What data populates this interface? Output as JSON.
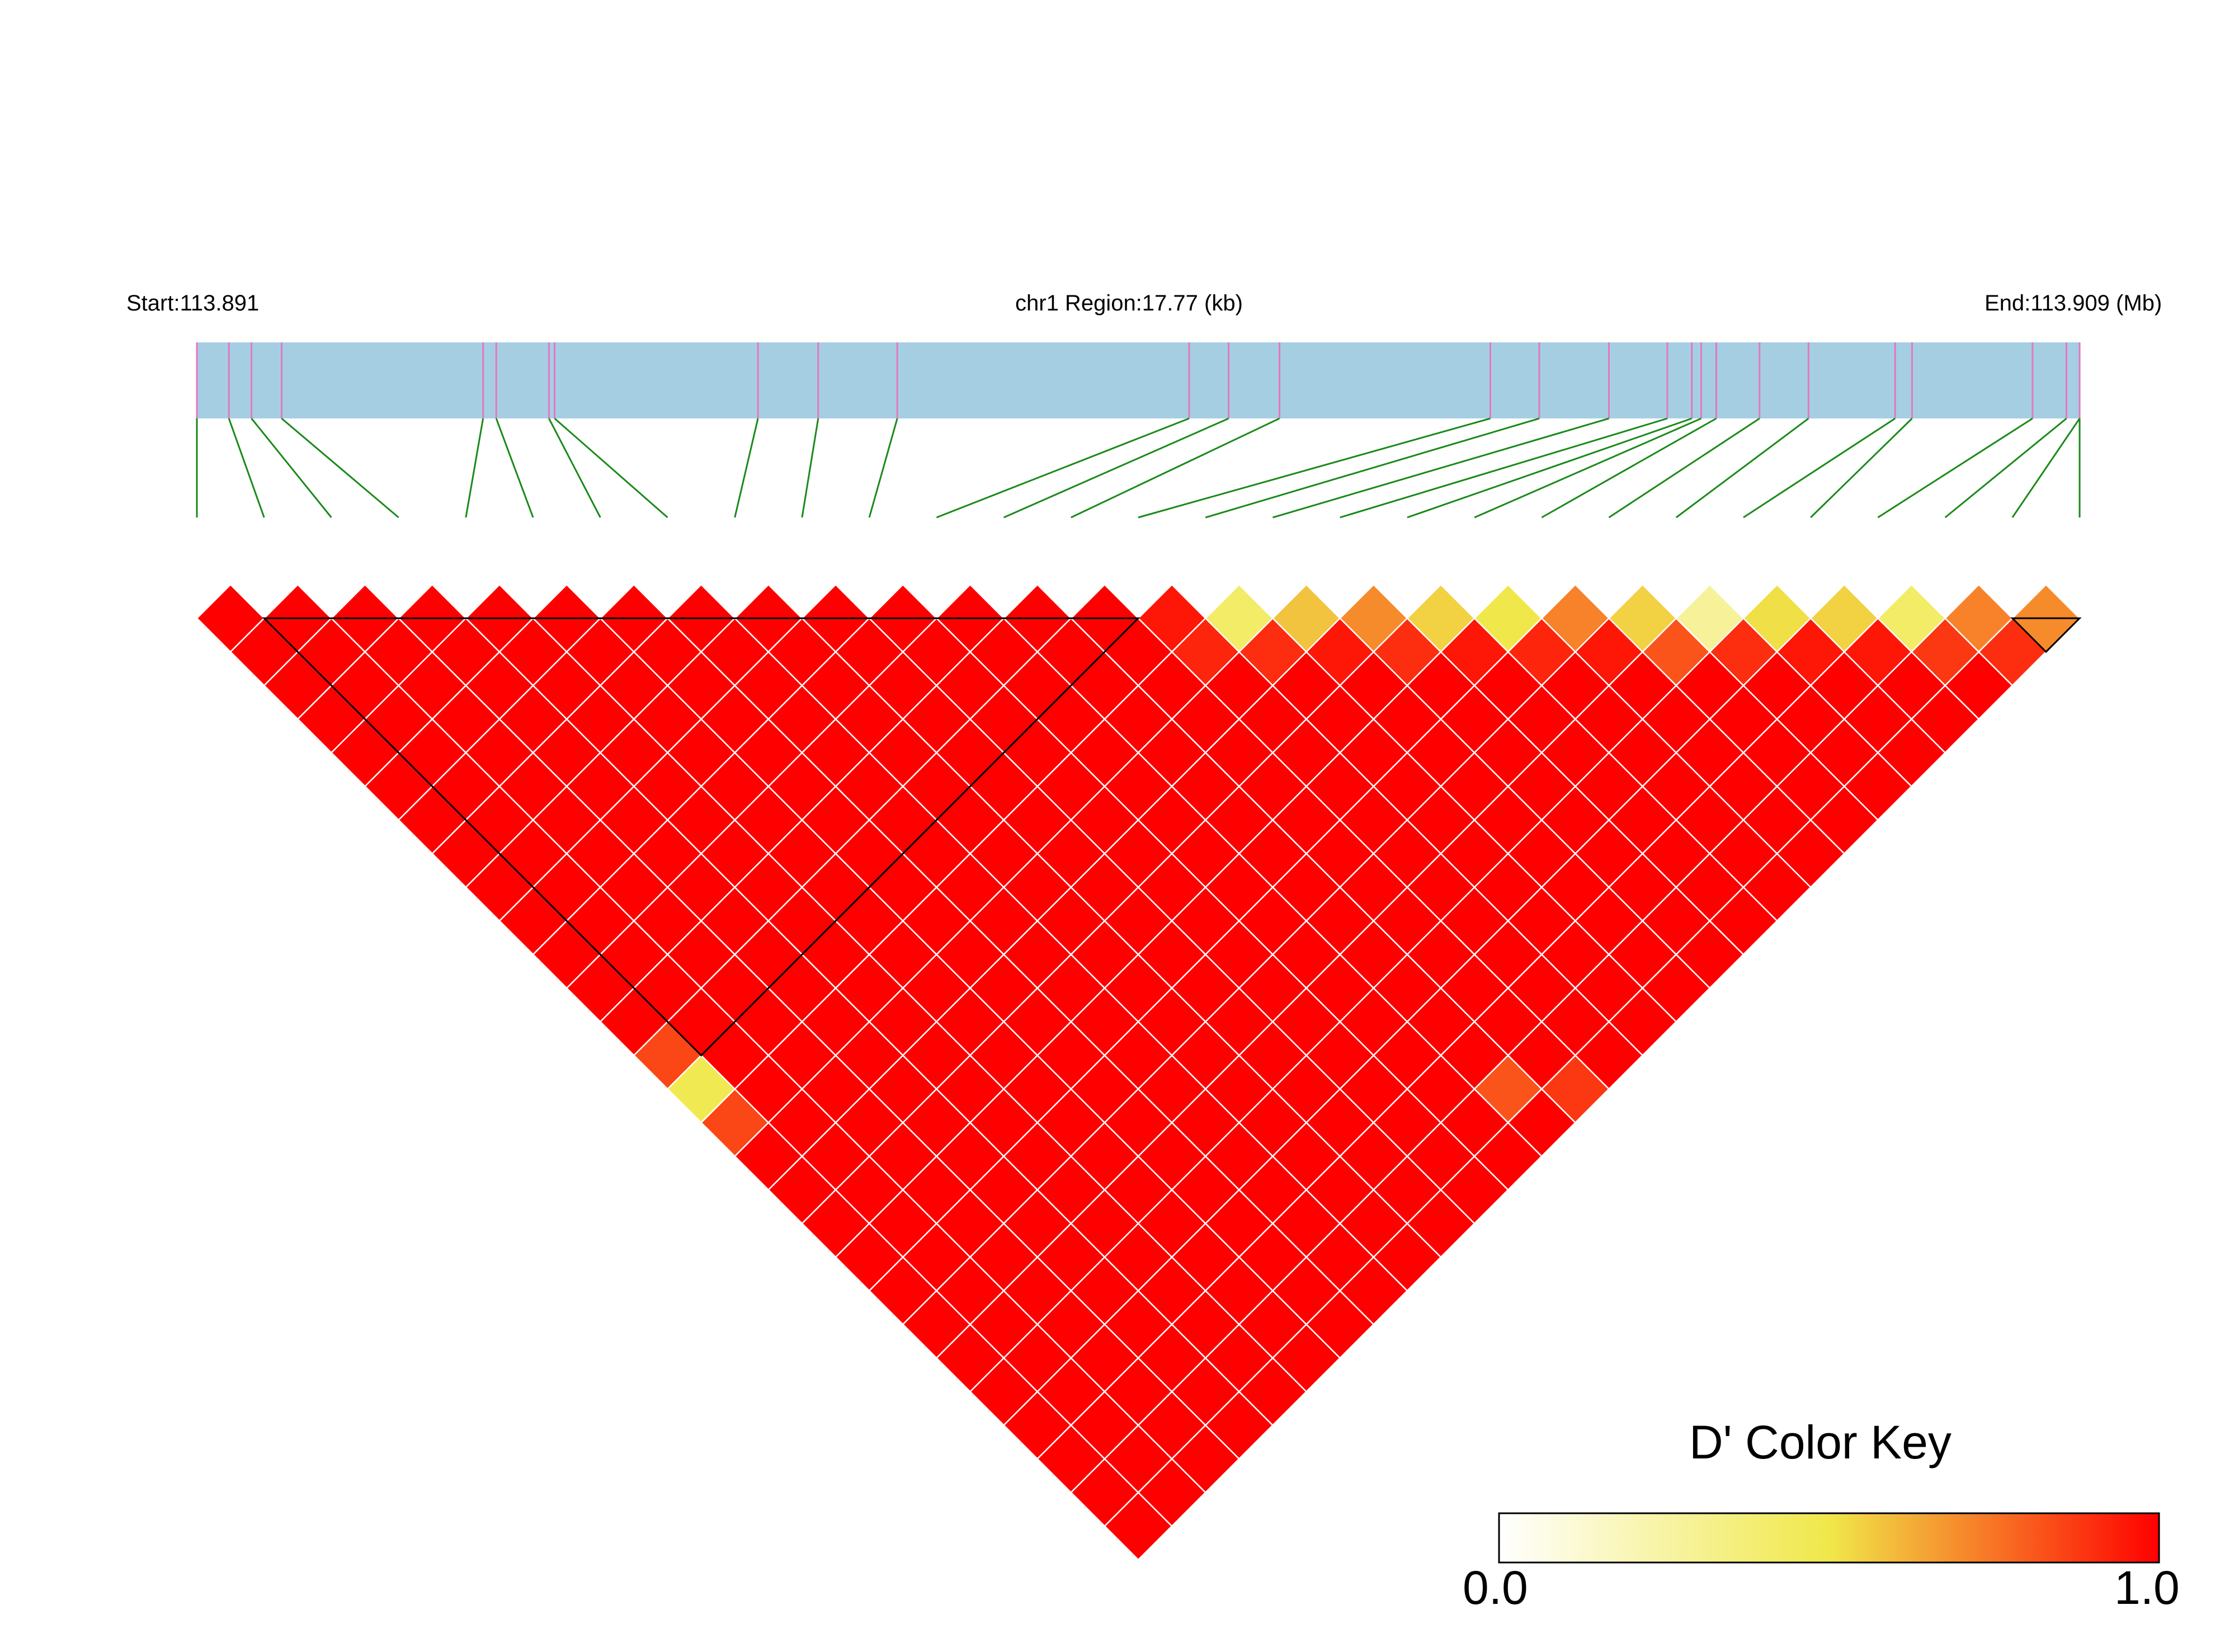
{
  "header": {
    "start_label": "Start:113.891",
    "region_label": "chr1 Region:17.77 (kb)",
    "end_label": "End:113.909 (Mb)"
  },
  "colorkey": {
    "title": "D' Color Key",
    "min_label": "0.0",
    "max_label": "1.0",
    "colors": {
      "low": "#ffffff",
      "mid": "#f0e84a",
      "high": "#ff0000"
    }
  },
  "colors": {
    "gene_bar": "#a6cee3",
    "snp_tick": "#e377c2",
    "connector": "#1a8a1a",
    "cell_border": "#ffffff",
    "block_border": "#000000"
  },
  "chart_data": {
    "type": "heatmap",
    "description_free": true,
    "region_start_mb": 113.891,
    "region_end_mb": 113.909,
    "n_snps": 29,
    "snp_positions_frac": [
      0.0,
      0.017,
      0.029,
      0.045,
      0.152,
      0.159,
      0.187,
      0.19,
      0.298,
      0.33,
      0.372,
      0.527,
      0.548,
      0.575,
      0.687,
      0.713,
      0.75,
      0.781,
      0.794,
      0.799,
      0.807,
      0.83,
      0.856,
      0.902,
      0.911,
      0.975,
      0.993,
      1.0,
      1.0
    ],
    "dprime_default": 1.0,
    "dprime_overrides": [
      {
        "i": 12,
        "j": 27,
        "value": 0.82
      },
      {
        "i": 13,
        "j": 28,
        "value": 0.88
      },
      {
        "i": 14,
        "j": 15,
        "value": 0.95
      },
      {
        "i": 14,
        "j": 16,
        "value": 0.92
      },
      {
        "i": 15,
        "j": 16,
        "value": 0.42
      },
      {
        "i": 15,
        "j": 17,
        "value": 0.9
      },
      {
        "i": 16,
        "j": 17,
        "value": 0.58
      },
      {
        "i": 16,
        "j": 18,
        "value": 0.95
      },
      {
        "i": 17,
        "j": 18,
        "value": 0.7
      },
      {
        "i": 17,
        "j": 19,
        "value": 0.9
      },
      {
        "i": 18,
        "j": 19,
        "value": 0.55
      },
      {
        "i": 18,
        "j": 20,
        "value": 0.95
      },
      {
        "i": 19,
        "j": 20,
        "value": 0.5
      },
      {
        "i": 19,
        "j": 21,
        "value": 0.92
      },
      {
        "i": 20,
        "j": 21,
        "value": 0.72
      },
      {
        "i": 20,
        "j": 22,
        "value": 0.95
      },
      {
        "i": 21,
        "j": 22,
        "value": 0.55
      },
      {
        "i": 21,
        "j": 23,
        "value": 0.82
      },
      {
        "i": 22,
        "j": 23,
        "value": 0.28
      },
      {
        "i": 22,
        "j": 24,
        "value": 0.9
      },
      {
        "i": 23,
        "j": 24,
        "value": 0.52
      },
      {
        "i": 23,
        "j": 25,
        "value": 0.95
      },
      {
        "i": 24,
        "j": 25,
        "value": 0.55
      },
      {
        "i": 24,
        "j": 26,
        "value": 0.95
      },
      {
        "i": 25,
        "j": 26,
        "value": 0.42
      },
      {
        "i": 25,
        "j": 27,
        "value": 0.88
      },
      {
        "i": 26,
        "j": 27,
        "value": 0.72
      },
      {
        "i": 26,
        "j": 28,
        "value": 0.9
      },
      {
        "i": 27,
        "j": 28,
        "value": 0.7
      },
      {
        "i": 0,
        "j": 14,
        "value": 0.85
      },
      {
        "i": 0,
        "j": 15,
        "value": 0.48
      },
      {
        "i": 0,
        "j": 16,
        "value": 0.85
      }
    ],
    "ld_blocks": [
      {
        "start": 1,
        "end": 14
      },
      {
        "start": 27,
        "end": 28
      }
    ],
    "legend": "bottom-right",
    "grid": true
  }
}
